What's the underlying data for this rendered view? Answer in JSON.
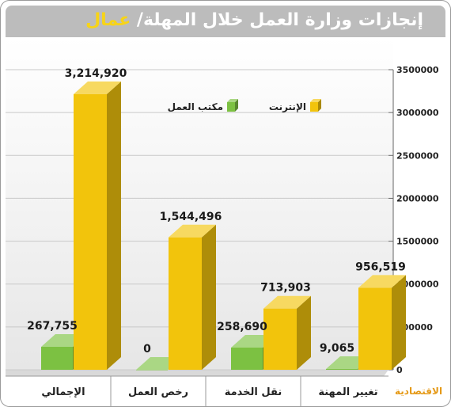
{
  "title": {
    "main": "إنجازات وزارة العمل خلال المهلة/",
    "accent": "عمال"
  },
  "logo": "الاقتصادية",
  "colors": {
    "internet": "#f2c40c",
    "office": "#7cc142"
  },
  "chart_data": {
    "type": "bar",
    "categories": [
      "الإجمالي",
      "رخص العمل",
      "نقل الخدمة",
      "تغيير المهنة"
    ],
    "series": [
      {
        "name": "مكتب العمل",
        "values": [
          267755,
          0,
          258690,
          9065
        ],
        "labels": [
          "267,755",
          "0",
          "258,690",
          "9,065"
        ]
      },
      {
        "name": "الإنترنت",
        "values": [
          3214920,
          1544496,
          713903,
          956519
        ],
        "labels": [
          "3,214,920",
          "1,544,496",
          "713,903",
          "956,519"
        ]
      }
    ],
    "ylim": [
      0,
      3500000
    ],
    "yticks": [
      "0",
      "500000",
      "1000000",
      "1500000",
      "2000000",
      "2500000",
      "3000000",
      "3500000"
    ],
    "grid": true,
    "legend_position": "top-right"
  }
}
